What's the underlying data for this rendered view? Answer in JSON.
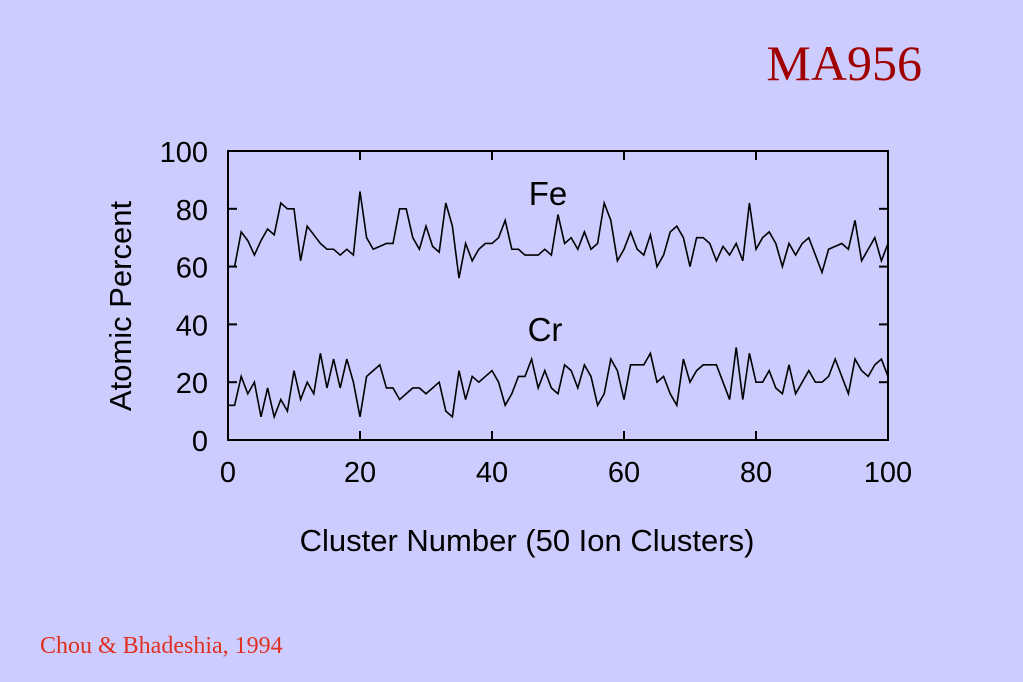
{
  "chart_data": {
    "type": "line",
    "title": "MA956",
    "xlabel": "Cluster Number (50 Ion Clusters)",
    "ylabel": "Atomic Percent",
    "source": "Chou & Bhadeshia, 1994",
    "x": [
      0,
      1,
      2,
      3,
      4,
      5,
      6,
      7,
      8,
      9,
      10,
      11,
      12,
      13,
      14,
      15,
      16,
      17,
      18,
      19,
      20,
      21,
      22,
      23,
      24,
      25,
      26,
      27,
      28,
      29,
      30,
      31,
      32,
      33,
      34,
      35,
      36,
      37,
      38,
      39,
      40,
      41,
      42,
      43,
      44,
      45,
      46,
      47,
      48,
      49,
      50,
      51,
      52,
      53,
      54,
      55,
      56,
      57,
      58,
      59,
      60,
      61,
      62,
      63,
      64,
      65,
      66,
      67,
      68,
      69,
      70,
      71,
      72,
      73,
      74,
      75,
      76,
      77,
      78,
      79,
      80,
      81,
      82,
      83,
      84,
      85,
      86,
      87,
      88,
      89,
      90,
      91,
      92,
      93,
      94,
      95,
      96,
      97,
      98,
      99,
      100
    ],
    "series": [
      {
        "name": "Fe",
        "color": "#000000",
        "values": [
          60,
          60,
          72,
          69,
          64,
          69,
          73,
          71,
          82,
          80,
          80,
          62,
          74,
          71,
          68,
          66,
          66,
          64,
          66,
          64,
          86,
          70,
          66,
          67,
          68,
          68,
          80,
          80,
          70,
          66,
          74,
          67,
          65,
          82,
          74,
          56,
          68,
          62,
          66,
          68,
          68,
          70,
          76,
          66,
          66,
          64,
          64,
          64,
          66,
          64,
          78,
          68,
          70,
          66,
          72,
          66,
          68,
          82,
          76,
          62,
          66,
          72,
          66,
          64,
          71,
          60,
          64,
          72,
          74,
          70,
          60,
          70,
          70,
          68,
          62,
          67,
          64,
          68,
          62,
          82,
          66,
          70,
          72,
          68,
          60,
          68,
          64,
          68,
          70,
          64,
          58,
          66,
          67,
          68,
          66,
          76,
          62,
          66,
          70,
          62,
          68
        ]
      },
      {
        "name": "Cr",
        "color": "#000000",
        "values": [
          12,
          12,
          22,
          16,
          20,
          8,
          18,
          8,
          14,
          10,
          24,
          14,
          20,
          16,
          30,
          18,
          28,
          18,
          28,
          20,
          8,
          22,
          24,
          26,
          18,
          18,
          14,
          16,
          18,
          18,
          16,
          18,
          20,
          10,
          8,
          24,
          14,
          22,
          20,
          22,
          24,
          20,
          12,
          16,
          22,
          22,
          28,
          18,
          24,
          18,
          16,
          26,
          24,
          18,
          26,
          22,
          12,
          16,
          28,
          24,
          14,
          26,
          26,
          26,
          30,
          20,
          22,
          16,
          12,
          28,
          20,
          24,
          26,
          26,
          26,
          20,
          14,
          32,
          14,
          30,
          20,
          20,
          24,
          18,
          16,
          26,
          16,
          20,
          24,
          20,
          20,
          22,
          28,
          22,
          16,
          28,
          24,
          22,
          26,
          28,
          22
        ]
      }
    ],
    "xlim": [
      0,
      100
    ],
    "xticks": [
      0,
      20,
      40,
      60,
      80,
      100
    ],
    "ylim": [
      0,
      100
    ],
    "yticks": [
      0,
      20,
      40,
      60,
      80,
      100
    ]
  }
}
